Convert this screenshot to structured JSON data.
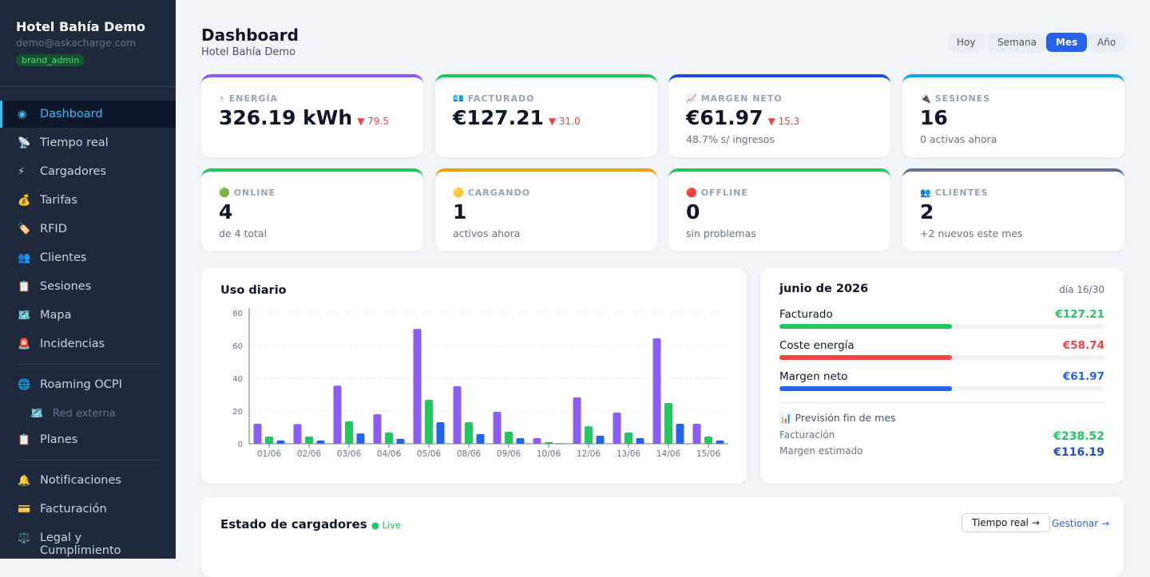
{
  "sidebar": {
    "brand": "Hotel Bahía Demo",
    "email": "demo@askacharge.com",
    "role": "brand_admin",
    "nav": [
      [
        {
          "icon": "◉",
          "label": "Dashboard",
          "active": true
        },
        {
          "icon": "📡",
          "label": "Tiempo real"
        },
        {
          "icon": "⚡",
          "label": "Cargadores"
        },
        {
          "icon": "💰",
          "label": "Tarifas"
        },
        {
          "icon": "🏷️",
          "label": "RFID"
        },
        {
          "icon": "👥",
          "label": "Clientes"
        },
        {
          "icon": "📋",
          "label": "Sesiones"
        },
        {
          "icon": "🗺️",
          "label": "Mapa"
        },
        {
          "icon": "🚨",
          "label": "Incidencias"
        }
      ],
      [
        {
          "icon": "🌐",
          "label": "Roaming OCPI"
        },
        {
          "icon": "🗺️",
          "label": "Red externa",
          "sub": true
        },
        {
          "icon": "📋",
          "label": "Planes"
        }
      ],
      [
        {
          "icon": "🔔",
          "label": "Notificaciones"
        },
        {
          "icon": "💳",
          "label": "Facturación"
        },
        {
          "icon": "⚖️",
          "label": "Legal y Cumplimiento"
        }
      ]
    ]
  },
  "header": {
    "title": "Dashboard",
    "subtitle": "Hotel Bahía Demo",
    "periods": [
      "Hoy",
      "Semana",
      "Mes",
      "Año"
    ],
    "active_period": 2
  },
  "kpis": [
    {
      "icon": "⚡",
      "label": "ENERGÍA",
      "value": "326.19 kWh",
      "delta": "▼ 79.5",
      "color": "#8b5cf6"
    },
    {
      "icon": "💶",
      "label": "FACTURADO",
      "value": "€127.21",
      "delta": "▼ 31.0",
      "color": "#22c55e"
    },
    {
      "icon": "📈",
      "label": "MARGEN NETO",
      "value": "€61.97",
      "delta": "▼ 15.3",
      "sub": "48.7% s/ ingresos",
      "color": "#1d4ed8"
    },
    {
      "icon": "🔌",
      "label": "SESIONES",
      "value": "16",
      "sub": "0 activas ahora",
      "color": "#0ea5e9"
    },
    {
      "icon": "🟢",
      "label": "ONLINE",
      "value": "4",
      "sub": "de 4 total",
      "color": "#22c55e"
    },
    {
      "icon": "🟡",
      "label": "CARGANDO",
      "value": "1",
      "sub": "activos ahora",
      "color": "#f59e0b"
    },
    {
      "icon": "🔴",
      "label": "OFFLINE",
      "value": "0",
      "sub": "sin problemas",
      "color": "#22c55e"
    },
    {
      "icon": "👥",
      "label": "CLIENTES",
      "value": "2",
      "sub": "+2 nuevos este mes",
      "color": "#64748b"
    }
  ],
  "chart_data": {
    "type": "bar",
    "title": "Uso diario",
    "categories": [
      "01/06",
      "02/06",
      "03/06",
      "04/06",
      "05/06",
      "08/06",
      "09/06",
      "10/06",
      "12/06",
      "13/06",
      "14/06",
      "15/06"
    ],
    "series": [
      {
        "color": "#8b5cf6",
        "values": [
          12.2,
          12,
          35.5,
          18,
          70.2,
          35.1,
          19.5,
          3.4,
          28.3,
          19,
          64.4,
          12.2
        ]
      },
      {
        "color": "#22c55e",
        "values": [
          4.4,
          4.4,
          13.7,
          6.8,
          26.8,
          13.2,
          7.3,
          1,
          10.7,
          6.8,
          24.9,
          4.4
        ]
      },
      {
        "color": "#2563eb",
        "values": [
          2,
          2,
          6.3,
          3,
          13.2,
          5.9,
          3.4,
          0.3,
          4.9,
          3.4,
          12.2,
          2
        ]
      }
    ],
    "ylim": [
      0,
      80
    ],
    "yticks": [
      0,
      20,
      40,
      60,
      80
    ],
    "grid": true
  },
  "month": {
    "title": "junio de 2026",
    "day": "día 16/30",
    "rows": [
      {
        "label": "Facturado",
        "value": "€127.21",
        "color": "#22c55e"
      },
      {
        "label": "Coste energía",
        "value": "€58.74",
        "color": "#ef4444"
      },
      {
        "label": "Margen neto",
        "value": "€61.97",
        "color": "#2563eb"
      }
    ],
    "forecast_title": "📊 Previsión fin de mes",
    "forecast": [
      {
        "label": "Facturación",
        "value": "€238.52",
        "color": "#22c55e"
      },
      {
        "label": "Margen estimado",
        "value": "€116.19",
        "color": "#1d4ed8"
      }
    ]
  },
  "chargers": {
    "title": "Estado de cargadores",
    "live": "● Live",
    "button": "Tiempo real →",
    "link": "Gestionar →"
  }
}
